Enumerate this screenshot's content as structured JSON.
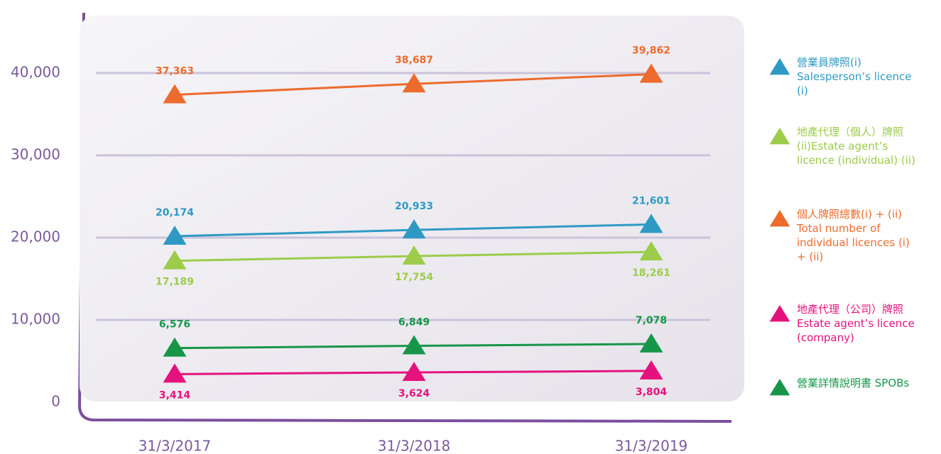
{
  "chart_data": {
    "type": "line",
    "x": [
      "31/3/2017",
      "31/3/2018",
      "31/3/2019"
    ],
    "ylim": [
      0,
      40000
    ],
    "yticks": [
      0,
      {
        "value": 10000,
        "label": "10,000"
      },
      {
        "value": 20000,
        "label": "20,000"
      },
      {
        "value": 30000,
        "label": "30,000"
      },
      {
        "value": 40000,
        "label": "40,000"
      }
    ],
    "grid": true,
    "series": [
      {
        "name": "營業員牌照(i) Salesperson’s licence (i)",
        "color": "#2e9ac4",
        "values": [
          20174,
          20933,
          21601
        ],
        "value_labels": [
          "20,174",
          "20,933",
          "21,601"
        ]
      },
      {
        "name": "地產代理（個人）牌照(ii)Estate agent’s licence (individual) (ii)",
        "color": "#9ccc4a",
        "values": [
          17189,
          17754,
          18261
        ],
        "value_labels": [
          "17,189",
          "17,754",
          "18,261"
        ]
      },
      {
        "name": "個人牌照總數(i) + (ii) Total number of individual licences (i) + (ii)",
        "color": "#ec6b2d",
        "values": [
          37363,
          38687,
          39862
        ],
        "value_labels": [
          "37,363",
          "38,687",
          "39,862"
        ]
      },
      {
        "name": "地產代理（公司）牌照Estate agent’s licence (company)",
        "color": "#e5127d",
        "values": [
          3414,
          3624,
          3804
        ],
        "value_labels": [
          "3,414",
          "3,624",
          "3,804"
        ]
      },
      {
        "name": "營業詳情說明書 SPOBs",
        "color": "#17964a",
        "values": [
          6576,
          6849,
          7078
        ],
        "value_labels": [
          "6,576",
          "6,849",
          "7,078"
        ]
      }
    ]
  }
}
